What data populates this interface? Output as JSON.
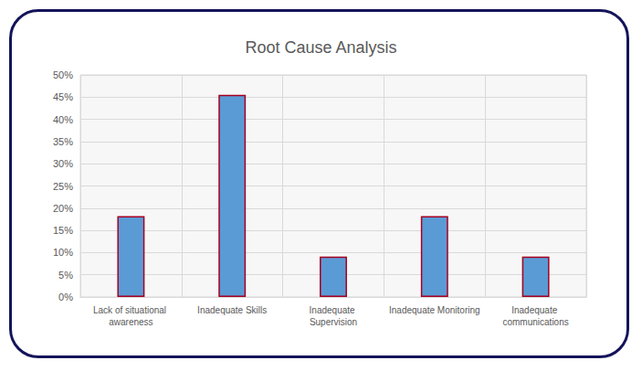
{
  "chart_data": {
    "type": "bar",
    "title": "Root Cause Analysis",
    "categories": [
      "Lack of situational awareness",
      "Inadequate Skills",
      "Inadequate Supervision",
      "Inadequate Monitoring",
      "Inadequate communications"
    ],
    "values": [
      18.2,
      45.5,
      9.1,
      18.2,
      9.1
    ],
    "color": "#5b9bd5",
    "ylim": [
      0,
      50
    ],
    "yticks": [
      {
        "value": 0,
        "label": "0%"
      },
      {
        "value": 5,
        "label": "5%"
      },
      {
        "value": 10,
        "label": "10%"
      },
      {
        "value": 15,
        "label": "15%"
      },
      {
        "value": 20,
        "label": "20%"
      },
      {
        "value": 25,
        "label": "25%"
      },
      {
        "value": 30,
        "label": "30%"
      },
      {
        "value": 35,
        "label": "35%"
      },
      {
        "value": 40,
        "label": "40%"
      },
      {
        "value": 45,
        "label": "45%"
      },
      {
        "value": 50,
        "label": "50%"
      }
    ],
    "grid": true
  }
}
